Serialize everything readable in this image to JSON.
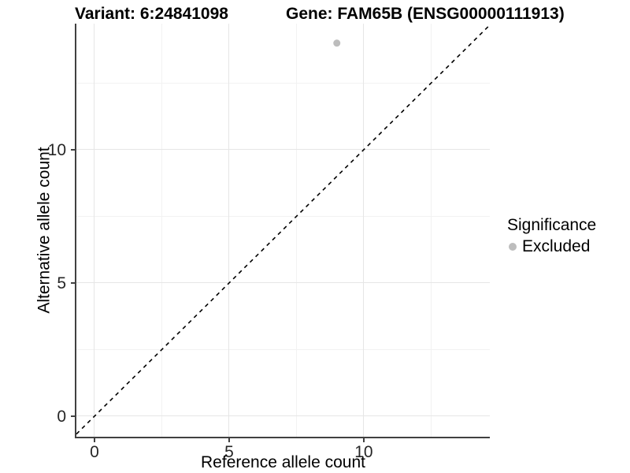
{
  "header": {
    "variant_title": "Variant: 6:24841098",
    "gene_title": "Gene: FAM65B (ENSG00000111913)"
  },
  "chart_data": {
    "type": "scatter",
    "title_left": "Variant: 6:24841098",
    "title_right": "Gene: FAM65B (ENSG00000111913)",
    "xlabel": "Reference allele count",
    "ylabel": "Alternative allele count",
    "xlim": [
      -0.67,
      14.68
    ],
    "ylim": [
      -0.77,
      14.73
    ],
    "x_major_ticks": [
      0,
      5,
      10
    ],
    "y_major_ticks": [
      0,
      5,
      10
    ],
    "x_minor_ticks": [
      2.5,
      7.5,
      12.5
    ],
    "y_minor_ticks": [
      2.5,
      7.5,
      12.5
    ],
    "grid": "major+minor",
    "legend_position": "right",
    "series": [
      {
        "name": "Excluded",
        "points": [
          {
            "x": 9,
            "y": 14
          }
        ],
        "color": "#bdbdbd"
      }
    ],
    "reference_line": {
      "equation": "y = x",
      "style": "dashed",
      "color": "#000000"
    }
  },
  "legend": {
    "title": "Significance",
    "items": [
      {
        "label": "Excluded",
        "color": "#bdbdbd"
      }
    ]
  },
  "colors": {
    "axis": "#404040",
    "grid_major": "#e6e6e6",
    "grid_minor": "#f2f2f2",
    "tick_text": "#262626",
    "title_text": "#000000",
    "point": "#bdbdbd",
    "dashed_line": "#000000",
    "background": "#ffffff"
  }
}
